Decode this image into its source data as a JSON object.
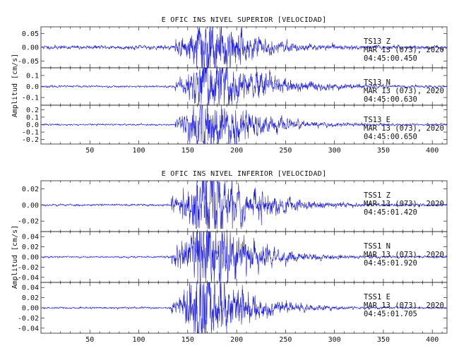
{
  "chart_data": [
    {
      "type": "line",
      "title": "E OFIC INS NIVEL SUPERIOR [VELOCIDAD]",
      "ylabel": "Amplitud [cm/s]",
      "xlim": [
        0,
        415
      ],
      "xticks": [
        50,
        100,
        150,
        200,
        250,
        300,
        350,
        400
      ],
      "line_color": "#1f1fe6",
      "series": [
        {
          "name": "TS13 Z",
          "station": "TS13",
          "component": "Z",
          "date": "MAR 13 (073), 2020",
          "time": "04:45:00.450",
          "ylim": [
            -0.075,
            0.075
          ],
          "yticks": [
            0.05,
            0.0,
            -0.05
          ],
          "ytick_labels": [
            "0.05",
            "0.00",
            "-0.05"
          ],
          "onset": 137,
          "peak_x": 170,
          "peak_amp": 0.072,
          "noise": 0.003,
          "decay": 28,
          "ringdown": 0,
          "seed": 11
        },
        {
          "name": "TS13 N",
          "station": "TS13",
          "component": "N",
          "date": "MAR 13 (073), 2020",
          "time": "04:45:00.630",
          "ylim": [
            -0.17,
            0.17
          ],
          "yticks": [
            0.1,
            0.0,
            -0.1
          ],
          "ytick_labels": [
            "0.1",
            "0.0",
            "-0.1"
          ],
          "onset": 137,
          "peak_x": 168,
          "peak_amp": 0.15,
          "noise": 0.004,
          "decay": 45,
          "ringdown": 0.09,
          "seed": 23
        },
        {
          "name": "TS13 E",
          "station": "TS13",
          "component": "E",
          "date": "MAR 13 (073), 2020",
          "time": "04:45:00.650",
          "ylim": [
            -0.26,
            0.26
          ],
          "yticks": [
            0.2,
            0.1,
            0.0,
            -0.1,
            -0.2
          ],
          "ytick_labels": [
            "0.2",
            "0.1",
            "0.0",
            "-0.1",
            "-0.2"
          ],
          "onset": 137,
          "peak_x": 169,
          "peak_amp": 0.23,
          "noise": 0.005,
          "decay": 38,
          "ringdown": 0.05,
          "seed": 37
        }
      ]
    },
    {
      "type": "line",
      "title": "E OFIC INS NIVEL INFERIOR [VELOCIDAD]",
      "ylabel": "Amplitud [cm/s]",
      "xlim": [
        0,
        415
      ],
      "xticks": [
        50,
        100,
        150,
        200,
        250,
        300,
        350,
        400
      ],
      "line_color": "#1f1fe6",
      "series": [
        {
          "name": "TSS1 Z",
          "station": "TSS1",
          "component": "Z",
          "date": "MAR 13 (073), 2020",
          "time": "04:45:01.420",
          "ylim": [
            -0.033,
            0.03
          ],
          "yticks": [
            0.02,
            0.0,
            -0.02
          ],
          "ytick_labels": [
            "0.02",
            "0.00",
            "-0.02"
          ],
          "onset": 133,
          "peak_x": 165,
          "peak_amp": 0.028,
          "noise": 0.0006,
          "decay": 40,
          "ringdown": 0,
          "seed": 53
        },
        {
          "name": "TSS1 N",
          "station": "TSS1",
          "component": "N",
          "date": "MAR 13 (073), 2020",
          "time": "04:45:01.920",
          "ylim": [
            -0.05,
            0.05
          ],
          "yticks": [
            0.04,
            0.02,
            0.0,
            -0.02,
            -0.04
          ],
          "ytick_labels": [
            "0.04",
            "0.02",
            "0.00",
            "-0.02",
            "-0.04"
          ],
          "onset": 133,
          "peak_x": 165,
          "peak_amp": 0.045,
          "noise": 0.0008,
          "decay": 38,
          "ringdown": 0,
          "seed": 71
        },
        {
          "name": "TSS1 E",
          "station": "TSS1",
          "component": "E",
          "date": "MAR 13 (073), 2020",
          "time": "04:45:01.705",
          "ylim": [
            -0.05,
            0.05
          ],
          "yticks": [
            0.04,
            0.02,
            0.0,
            -0.02,
            -0.04
          ],
          "ytick_labels": [
            "0.04",
            "0.02",
            "0.00",
            "-0.02",
            "-0.04"
          ],
          "onset": 133,
          "peak_x": 166,
          "peak_amp": 0.046,
          "noise": 0.0008,
          "decay": 34,
          "ringdown": 0,
          "seed": 89
        }
      ]
    }
  ]
}
